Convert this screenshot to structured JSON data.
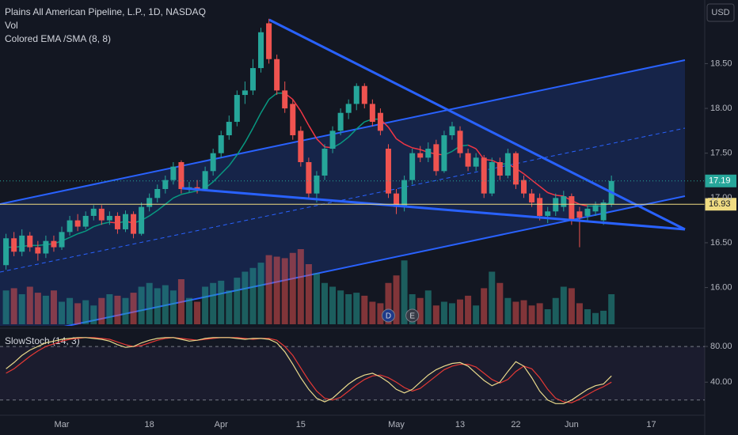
{
  "header": {
    "symbol": "Plains All American Pipeline, L.P., 1D, NASDAQ",
    "vol": "Vol",
    "indicator": "Colored EMA /SMA (8, 8)",
    "currency": "USD"
  },
  "chart_data": {
    "type": "candlestick",
    "categories": [
      null,
      null,
      null,
      null,
      null,
      null,
      null,
      "Mar",
      null,
      null,
      null,
      null,
      null,
      null,
      null,
      null,
      null,
      null,
      "18",
      null,
      null,
      null,
      null,
      null,
      null,
      null,
      null,
      "Apr",
      null,
      null,
      null,
      null,
      null,
      null,
      null,
      null,
      null,
      "15",
      null,
      null,
      null,
      null,
      null,
      null,
      null,
      null,
      null,
      null,
      null,
      "May",
      null,
      null,
      null,
      null,
      null,
      null,
      null,
      "13",
      null,
      null,
      null,
      null,
      null,
      null,
      "22",
      null,
      null,
      null,
      null,
      null,
      null,
      "Jun",
      null,
      null,
      null,
      null,
      null,
      null,
      null,
      null,
      null,
      "17",
      null,
      null,
      null,
      null,
      null,
      null
    ],
    "open": [
      16.25,
      16.55,
      16.4,
      16.58,
      16.45,
      16.38,
      16.52,
      16.45,
      16.62,
      16.75,
      16.68,
      16.8,
      16.88,
      16.75,
      16.8,
      16.65,
      16.82,
      16.6,
      16.9,
      17.0,
      17.1,
      17.2,
      17.4,
      17.1,
      17.12,
      17.1,
      17.3,
      17.5,
      17.7,
      17.85,
      18.15,
      18.2,
      18.45,
      18.95,
      18.55,
      18.2,
      18.05,
      17.75,
      17.4,
      17.05,
      17.25,
      17.55,
      17.75,
      17.95,
      18.05,
      18.25,
      18.05,
      17.95,
      17.55,
      17.05,
      16.9,
      17.2,
      17.5,
      17.45,
      17.6,
      17.3,
      17.7,
      17.75,
      17.5,
      17.35,
      17.45,
      17.05,
      17.4,
      17.25,
      17.5,
      17.2,
      17.05,
      17.0,
      16.8,
      16.85,
      16.9,
      17.02,
      16.85,
      16.8,
      16.85,
      16.75,
      16.93,
      null,
      null,
      null,
      null,
      null,
      null,
      null,
      null,
      null,
      null,
      null
    ],
    "high": [
      16.6,
      16.62,
      16.65,
      16.62,
      16.52,
      16.58,
      16.58,
      16.68,
      16.8,
      16.82,
      16.85,
      16.92,
      16.92,
      16.85,
      16.84,
      16.86,
      16.85,
      16.95,
      17.05,
      17.15,
      17.25,
      17.4,
      17.42,
      17.18,
      17.2,
      17.35,
      17.55,
      17.75,
      17.92,
      18.2,
      18.3,
      18.55,
      18.9,
      19.0,
      18.6,
      18.3,
      18.1,
      17.8,
      17.45,
      17.3,
      17.6,
      17.8,
      18.0,
      18.1,
      18.28,
      18.28,
      18.1,
      18.0,
      17.6,
      17.1,
      17.25,
      17.55,
      17.58,
      17.62,
      17.65,
      17.75,
      17.85,
      17.8,
      17.55,
      17.5,
      17.48,
      17.45,
      17.45,
      17.55,
      17.52,
      17.25,
      17.1,
      17.05,
      16.9,
      17.05,
      17.08,
      17.05,
      16.9,
      16.92,
      16.96,
      16.98,
      17.25,
      null,
      null,
      null,
      null,
      null,
      null,
      null,
      null,
      null,
      null,
      null
    ],
    "low": [
      16.2,
      16.35,
      16.35,
      16.4,
      16.3,
      16.33,
      16.4,
      16.42,
      16.58,
      16.63,
      16.65,
      16.75,
      16.7,
      16.7,
      16.6,
      16.62,
      16.55,
      16.58,
      16.85,
      16.95,
      17.05,
      17.15,
      17.05,
      17.06,
      17.05,
      17.08,
      17.25,
      17.45,
      17.65,
      17.8,
      18.05,
      18.15,
      18.4,
      18.5,
      18.15,
      17.95,
      17.65,
      17.35,
      17.0,
      16.95,
      17.2,
      17.5,
      17.7,
      17.88,
      17.98,
      18.0,
      17.8,
      17.7,
      17.0,
      16.82,
      16.85,
      17.15,
      17.4,
      17.4,
      17.25,
      17.28,
      17.65,
      17.45,
      17.3,
      17.3,
      17.0,
      17.02,
      17.2,
      17.22,
      17.1,
      17.0,
      16.9,
      16.75,
      16.72,
      16.8,
      16.85,
      16.7,
      16.45,
      16.75,
      16.8,
      16.7,
      16.9,
      null,
      null,
      null,
      null,
      null,
      null,
      null,
      null,
      null,
      null,
      null
    ],
    "close": [
      16.55,
      16.4,
      16.58,
      16.45,
      16.38,
      16.52,
      16.45,
      16.62,
      16.75,
      16.68,
      16.8,
      16.88,
      16.75,
      16.8,
      16.65,
      16.82,
      16.6,
      16.9,
      17.0,
      17.1,
      17.2,
      17.35,
      17.1,
      17.12,
      17.1,
      17.3,
      17.5,
      17.7,
      17.85,
      18.15,
      18.2,
      18.45,
      18.85,
      18.55,
      18.2,
      18.0,
      17.7,
      17.4,
      17.05,
      17.25,
      17.55,
      17.75,
      17.95,
      18.05,
      18.25,
      18.05,
      17.85,
      17.75,
      17.05,
      16.9,
      17.2,
      17.5,
      17.45,
      17.55,
      17.3,
      17.7,
      17.8,
      17.5,
      17.35,
      17.45,
      17.05,
      17.4,
      17.25,
      17.5,
      17.15,
      17.05,
      16.95,
      16.8,
      16.85,
      17.0,
      17.02,
      16.75,
      16.78,
      16.88,
      16.92,
      16.95,
      17.19,
      null,
      null,
      null,
      null,
      null,
      null,
      null,
      null,
      null,
      null,
      null
    ],
    "volume": [
      45,
      48,
      40,
      50,
      42,
      38,
      45,
      30,
      35,
      28,
      32,
      25,
      35,
      40,
      38,
      35,
      42,
      50,
      55,
      48,
      52,
      45,
      60,
      35,
      30,
      50,
      55,
      58,
      45,
      62,
      70,
      75,
      82,
      92,
      90,
      88,
      95,
      100,
      80,
      68,
      55,
      50,
      45,
      40,
      42,
      38,
      30,
      28,
      55,
      65,
      85,
      40,
      35,
      45,
      25,
      30,
      28,
      33,
      38,
      25,
      48,
      70,
      55,
      35,
      30,
      32,
      25,
      28,
      20,
      35,
      50,
      48,
      28,
      20,
      15,
      18,
      40,
      null,
      null,
      null,
      null,
      null,
      null,
      null,
      null,
      null,
      null,
      null
    ],
    "ema": [
      16.45,
      16.45,
      16.46,
      16.47,
      16.47,
      16.48,
      16.49,
      16.52,
      16.56,
      16.6,
      16.63,
      16.68,
      16.71,
      16.73,
      16.72,
      16.74,
      16.72,
      16.75,
      16.8,
      16.86,
      16.93,
      17.0,
      17.04,
      17.06,
      17.08,
      17.11,
      17.18,
      17.27,
      17.36,
      17.48,
      17.62,
      17.78,
      17.95,
      18.1,
      18.17,
      18.17,
      18.1,
      17.97,
      17.81,
      17.66,
      17.57,
      17.56,
      17.61,
      17.68,
      17.77,
      17.85,
      17.88,
      17.88,
      17.79,
      17.66,
      17.6,
      17.56,
      17.54,
      17.51,
      17.49,
      17.48,
      17.52,
      17.58,
      17.59,
      17.55,
      17.43,
      17.42,
      17.38,
      17.38,
      17.33,
      17.27,
      17.2,
      17.13,
      17.06,
      17.03,
      17.02,
      16.97,
      16.93,
      16.91,
      16.91,
      16.91,
      16.96,
      null,
      null,
      null,
      null,
      null,
      null,
      null,
      null,
      null,
      null,
      null
    ],
    "up_color": "#26a69a",
    "down_color": "#ef5350",
    "ema_up_color": "#089981",
    "ema_down_color": "#f23645",
    "ylim": [
      15.59,
      19.21
    ],
    "yticks": [
      {
        "value": 16,
        "label": "16.00"
      },
      {
        "value": 16.5,
        "label": "16.50"
      },
      {
        "value": 17,
        "label": "17.00"
      },
      {
        "value": 17.5,
        "label": "17.50"
      },
      {
        "value": 18,
        "label": "18.00"
      },
      {
        "value": 18.5,
        "label": "18.50"
      }
    ],
    "ref_price": 16.93,
    "ref_color": "#f0dc82",
    "events": [
      {
        "index": 48,
        "label": "D"
      },
      {
        "index": 51,
        "label": "E"
      }
    ],
    "stoch": {
      "type": "line",
      "title": "SlowStoch (14, 3)",
      "k": [
        55,
        62,
        70,
        76,
        80,
        84,
        86,
        88,
        89,
        90,
        90,
        89,
        88,
        86,
        82,
        79,
        80,
        84,
        87,
        89,
        90,
        90,
        88,
        86,
        87,
        89,
        90,
        90,
        90,
        89,
        88,
        89,
        89,
        88,
        84,
        74,
        60,
        45,
        32,
        22,
        18,
        22,
        30,
        38,
        44,
        48,
        50,
        46,
        40,
        32,
        28,
        32,
        40,
        48,
        54,
        58,
        61,
        62,
        58,
        50,
        42,
        36,
        40,
        52,
        63,
        58,
        45,
        30,
        20,
        16,
        16,
        20,
        26,
        32,
        36,
        38,
        47,
        null,
        null,
        null,
        null,
        null,
        null,
        null,
        null,
        null,
        null,
        null
      ],
      "d": [
        50,
        55,
        62,
        69,
        75,
        80,
        83,
        86,
        88,
        89,
        90,
        90,
        89,
        88,
        85,
        82,
        80,
        81,
        84,
        87,
        89,
        90,
        89,
        88,
        87,
        88,
        89,
        90,
        90,
        90,
        89,
        88,
        89,
        89,
        87,
        80,
        70,
        56,
        42,
        30,
        22,
        20,
        23,
        30,
        37,
        43,
        47,
        48,
        45,
        40,
        34,
        30,
        33,
        40,
        47,
        54,
        58,
        60,
        60,
        57,
        50,
        43,
        39,
        43,
        52,
        58,
        55,
        45,
        32,
        22,
        18,
        17,
        21,
        26,
        31,
        35,
        40,
        null,
        null,
        null,
        null,
        null,
        null,
        null,
        null,
        null,
        null,
        null
      ],
      "k_color": "#e9d98c",
      "d_color": "#e53935",
      "ylim": [
        3,
        96
      ],
      "yticks": [
        {
          "value": 80,
          "label": "80.00"
        },
        {
          "value": 40,
          "label": "40.00"
        }
      ],
      "bands": [
        20,
        80
      ]
    }
  }
}
